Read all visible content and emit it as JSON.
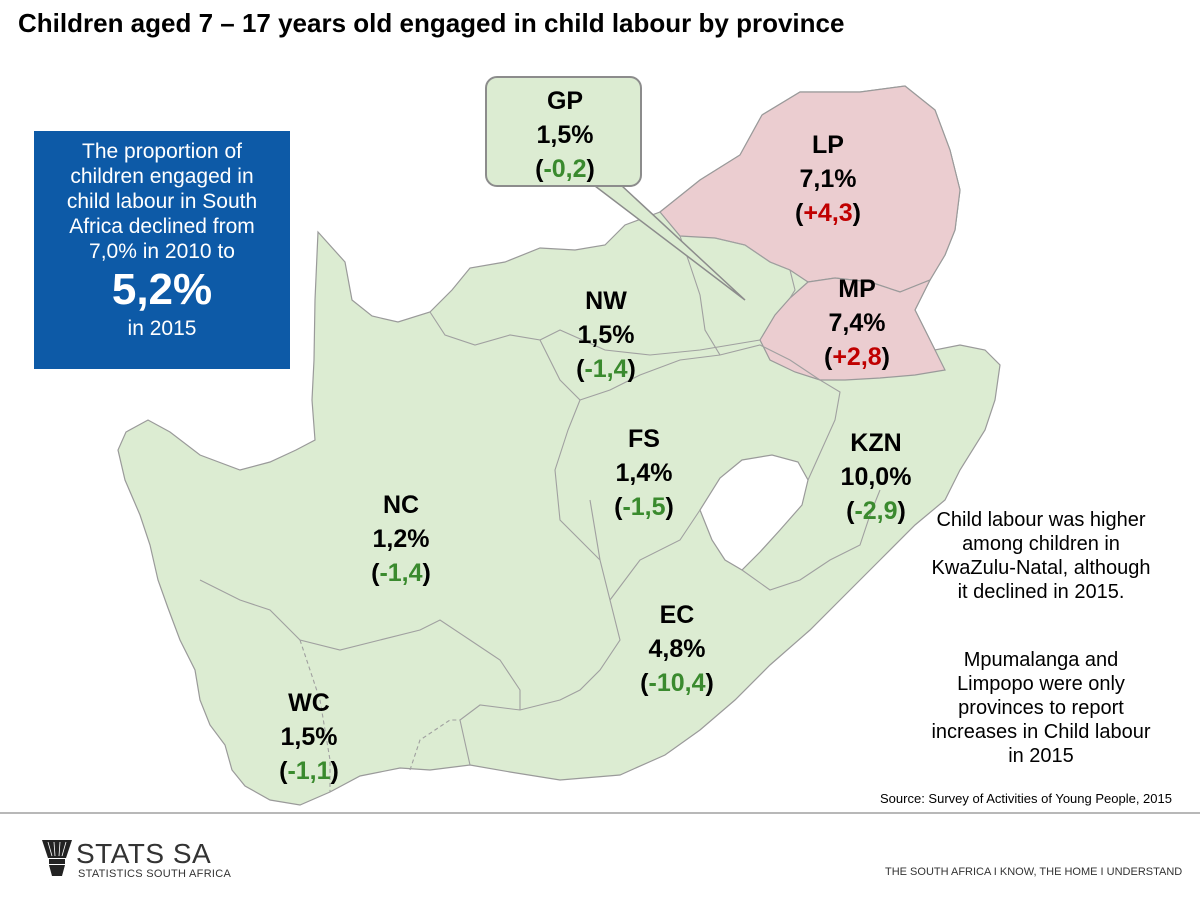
{
  "title": "Children aged 7 – 17 years old engaged in child labour by province",
  "info_box": {
    "lines": [
      "The proportion of",
      "children engaged in",
      "child labour in South",
      "Africa declined from",
      "7,0% in 2010 to"
    ],
    "value": "5,2%",
    "year": "in 2015"
  },
  "provinces": {
    "GP": {
      "code": "GP",
      "value": "1,5%",
      "change": "-0,2",
      "trend": "down"
    },
    "LP": {
      "code": "LP",
      "value": "7,1%",
      "change": "+4,3",
      "trend": "up"
    },
    "MP": {
      "code": "MP",
      "value": "7,4%",
      "change": "+2,8",
      "trend": "up"
    },
    "NW": {
      "code": "NW",
      "value": "1,5%",
      "change": "-1,4",
      "trend": "down"
    },
    "FS": {
      "code": "FS",
      "value": "1,4%",
      "change": "-1,5",
      "trend": "down"
    },
    "KZN": {
      "code": "KZN",
      "value": "10,0%",
      "change": "-2,9",
      "trend": "down"
    },
    "NC": {
      "code": "NC",
      "value": "1,2%",
      "change": "-1,4",
      "trend": "down"
    },
    "EC": {
      "code": "EC",
      "value": "4,8%",
      "change": "-10,4",
      "trend": "down"
    },
    "WC": {
      "code": "WC",
      "value": "1,5%",
      "change": "-1,1",
      "trend": "down"
    }
  },
  "side_notes": {
    "note1": [
      "Child labour was higher",
      "among children in",
      "KwaZulu-Natal, although",
      "it declined in 2015."
    ],
    "note2": [
      "Mpumalanga and",
      "Limpopo were only",
      "provinces to report",
      "increases in Child labour",
      "in 2015"
    ]
  },
  "source": "Source: Survey of Activities of Young People, 2015",
  "footer": {
    "logo_name": "STATS SA",
    "logo_sub": "STATISTICS SOUTH AFRICA",
    "tagline": "THE SOUTH AFRICA I KNOW, THE HOME I UNDERSTAND"
  },
  "colors": {
    "decrease_fill": "#dcecd2",
    "increase_fill": "#ebcdd0",
    "decrease_text": "#3a8a2e",
    "increase_text": "#c00000",
    "info_box": "#0d5aa7"
  }
}
